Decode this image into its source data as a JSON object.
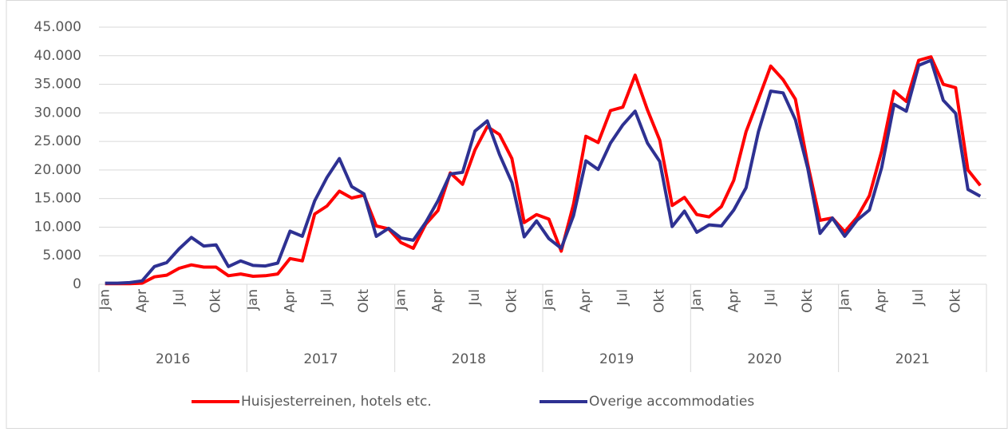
{
  "chart_data": {
    "type": "line",
    "categories": [
      "Jan",
      null,
      null,
      "Apr",
      null,
      null,
      "Jul",
      null,
      null,
      "Okt",
      null,
      null,
      "Jan",
      null,
      null,
      "Apr",
      null,
      null,
      "Jul",
      null,
      null,
      "Okt",
      null,
      null,
      "Jan",
      null,
      null,
      "Apr",
      null,
      null,
      "Jul",
      null,
      null,
      "Okt",
      null,
      null,
      "Jan",
      null,
      null,
      "Apr",
      null,
      null,
      "Jul",
      null,
      null,
      "Okt",
      null,
      null,
      "Jan",
      null,
      null,
      "Apr",
      null,
      null,
      "Jul",
      null,
      null,
      "Okt",
      null,
      null,
      "Jan",
      null,
      null,
      "Apr",
      null,
      null,
      "Jul",
      null,
      null,
      "Okt",
      null,
      null
    ],
    "groups": [
      "2016",
      "2017",
      "2018",
      "2019",
      "2020",
      "2021"
    ],
    "series": [
      {
        "name": "Huisjesterreinen, hotels etc.",
        "color": "#ff0000",
        "values": [
          100,
          100,
          100,
          200,
          1300,
          1600,
          2800,
          3400,
          3000,
          3000,
          1500,
          1800,
          1400,
          1500,
          1800,
          4500,
          4100,
          12300,
          13700,
          16300,
          15100,
          15600,
          10200,
          9700,
          7300,
          6300,
          10500,
          12900,
          19500,
          17500,
          23500,
          27600,
          26200,
          22000,
          10800,
          12200,
          11400,
          5800,
          14000,
          25900,
          24800,
          30400,
          31000,
          36600,
          30500,
          25200,
          13800,
          15200,
          12200,
          11800,
          13600,
          18200,
          26700,
          32400,
          38200,
          35800,
          32400,
          21000,
          11200,
          11600,
          9200,
          11700,
          15500,
          23300,
          33800,
          32000,
          39200,
          39800,
          35000,
          34400,
          20000,
          17300
        ]
      },
      {
        "name": "Overige accommodaties",
        "color": "#2e3192",
        "values": [
          200,
          200,
          300,
          600,
          3100,
          3800,
          6200,
          8200,
          6700,
          6900,
          3100,
          4100,
          3300,
          3200,
          3700,
          9300,
          8400,
          14600,
          18700,
          22000,
          17100,
          15800,
          8400,
          9800,
          8100,
          7700,
          10800,
          14600,
          19300,
          19600,
          26800,
          28600,
          22700,
          17800,
          8300,
          11100,
          8000,
          6300,
          12000,
          21600,
          20100,
          24700,
          27900,
          30300,
          24700,
          21500,
          10100,
          12800,
          9100,
          10400,
          10200,
          13000,
          16900,
          26700,
          33800,
          33500,
          28800,
          20300,
          8900,
          11600,
          8400,
          11200,
          13000,
          20400,
          31500,
          30300,
          38300,
          39200,
          32200,
          29900,
          16600,
          15400
        ]
      }
    ],
    "ylim": [
      0,
      45000
    ],
    "yticks": [
      0,
      {
        "value": 5000,
        "label": "5.000"
      },
      {
        "value": 10000,
        "label": "10.000"
      },
      {
        "value": 15000,
        "label": "15.000"
      },
      {
        "value": 20000,
        "label": "20.000"
      },
      {
        "value": 25000,
        "label": "25.000"
      },
      {
        "value": 30000,
        "label": "30.000"
      },
      {
        "value": 35000,
        "label": "35.000"
      },
      {
        "value": 40000,
        "label": "40.000"
      },
      {
        "value": 45000,
        "label": "45.000"
      }
    ],
    "grid": true,
    "legend": "bottom"
  }
}
